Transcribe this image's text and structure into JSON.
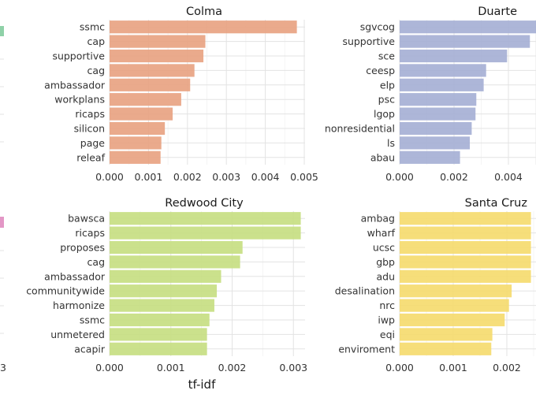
{
  "chart_data": [
    {
      "type": "bar",
      "orientation": "horizontal",
      "title": "Colma",
      "color": "#E8A180",
      "xlim": [
        0,
        0.005
      ],
      "xticks": [
        "0.000",
        "0.001",
        "0.002",
        "0.003",
        "0.004",
        "0.005"
      ],
      "categories": [
        "ssmc",
        "cap",
        "supportive",
        "cag",
        "ambassador",
        "workplans",
        "ricaps",
        "silicon",
        "page",
        "releaf"
      ],
      "values": [
        0.00481,
        0.00246,
        0.00241,
        0.00218,
        0.00207,
        0.00184,
        0.00162,
        0.00142,
        0.00133,
        0.00131
      ]
    },
    {
      "type": "bar",
      "orientation": "horizontal",
      "title": "Duarte",
      "color": "#A4AED4",
      "xlim": [
        0,
        0.005
      ],
      "xticks": [
        "0.000",
        "0.002",
        "0.004"
      ],
      "categories": [
        "sgvcog",
        "supportive",
        "sce",
        "ceesp",
        "elp",
        "psc",
        "lgop",
        "nonresidential",
        "ls",
        "abau"
      ],
      "values": [
        0.00503,
        0.00479,
        0.00395,
        0.00318,
        0.00309,
        0.00282,
        0.00279,
        0.00265,
        0.00258,
        0.00222
      ]
    },
    {
      "type": "bar",
      "orientation": "horizontal",
      "title": "Redwood City",
      "color": "#C5DE80",
      "xlim": [
        0,
        0.0033
      ],
      "xticks": [
        "0.000",
        "0.001",
        "0.002",
        "0.003"
      ],
      "categories": [
        "bawsca",
        "ricaps",
        "proposes",
        "cag",
        "ambassador",
        "communitywide",
        "harmonize",
        "ssmc",
        "unmetered",
        "acapir"
      ],
      "values": [
        0.00312,
        0.00312,
        0.00217,
        0.00213,
        0.00182,
        0.00175,
        0.00171,
        0.00163,
        0.00159,
        0.00159
      ]
    },
    {
      "type": "bar",
      "orientation": "horizontal",
      "title": "Santa Cruz",
      "color": "#F5DA6B",
      "xlim": [
        0,
        0.0024
      ],
      "xticks": [
        "0.000",
        "0.001",
        "0.002"
      ],
      "categories": [
        "ambag",
        "wharf",
        "ucsc",
        "gbp",
        "adu",
        "desalination",
        "nrc",
        "iwp",
        "eqi",
        "enviroment"
      ],
      "values": [
        0.00245,
        0.00245,
        0.00245,
        0.00245,
        0.00245,
        0.00209,
        0.00204,
        0.00196,
        0.00173,
        0.00171
      ]
    }
  ],
  "xlabel": "tf-idf",
  "clipped_left": {
    "top_tick": "",
    "bottom_tick": "3",
    "top_color": "#8FD1A8",
    "bottom_color": "#E397C6"
  }
}
